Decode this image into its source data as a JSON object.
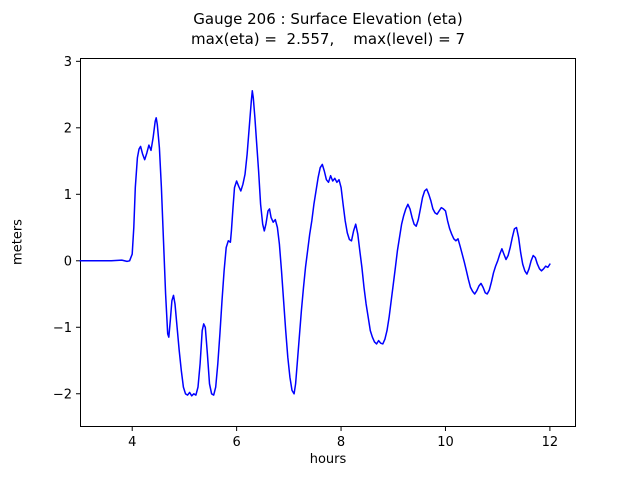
{
  "chart_data": {
    "type": "line",
    "title": "Gauge 206 : Surface Elevation (eta)",
    "subtitle": "max(eta) =  2.557,    max(level) = 7",
    "xlabel": "hours",
    "ylabel": "meters",
    "xlim": [
      3.0,
      12.5
    ],
    "ylim": [
      -2.5,
      3.05
    ],
    "xticks": [
      4,
      6,
      8,
      10,
      12
    ],
    "xtick_labels": [
      "4",
      "6",
      "8",
      "10",
      "12"
    ],
    "yticks": [
      -2,
      -1,
      0,
      1,
      2,
      3
    ],
    "ytick_labels": [
      "−2",
      "−1",
      "0",
      "1",
      "2",
      "3"
    ],
    "line_color": "#0000ff",
    "grid": false,
    "legend": null,
    "series": [
      {
        "name": "eta",
        "points": [
          [
            3.0,
            0.0
          ],
          [
            3.2,
            0.0
          ],
          [
            3.4,
            0.0
          ],
          [
            3.6,
            0.0
          ],
          [
            3.8,
            0.01
          ],
          [
            3.9,
            -0.01
          ],
          [
            3.95,
            0.0
          ],
          [
            4.0,
            0.1
          ],
          [
            4.03,
            0.5
          ],
          [
            4.06,
            1.1
          ],
          [
            4.1,
            1.55
          ],
          [
            4.13,
            1.68
          ],
          [
            4.16,
            1.72
          ],
          [
            4.2,
            1.6
          ],
          [
            4.24,
            1.52
          ],
          [
            4.28,
            1.62
          ],
          [
            4.32,
            1.74
          ],
          [
            4.36,
            1.66
          ],
          [
            4.4,
            1.85
          ],
          [
            4.44,
            2.1
          ],
          [
            4.46,
            2.15
          ],
          [
            4.48,
            2.05
          ],
          [
            4.52,
            1.7
          ],
          [
            4.56,
            1.1
          ],
          [
            4.6,
            0.3
          ],
          [
            4.64,
            -0.5
          ],
          [
            4.68,
            -1.1
          ],
          [
            4.7,
            -1.15
          ],
          [
            4.73,
            -0.9
          ],
          [
            4.76,
            -0.6
          ],
          [
            4.79,
            -0.52
          ],
          [
            4.82,
            -0.65
          ],
          [
            4.86,
            -1.0
          ],
          [
            4.9,
            -1.35
          ],
          [
            4.94,
            -1.65
          ],
          [
            4.98,
            -1.9
          ],
          [
            5.02,
            -2.0
          ],
          [
            5.06,
            -2.02
          ],
          [
            5.1,
            -1.98
          ],
          [
            5.14,
            -2.03
          ],
          [
            5.18,
            -2.0
          ],
          [
            5.22,
            -2.02
          ],
          [
            5.26,
            -1.9
          ],
          [
            5.3,
            -1.55
          ],
          [
            5.34,
            -1.05
          ],
          [
            5.37,
            -0.95
          ],
          [
            5.4,
            -1.0
          ],
          [
            5.44,
            -1.4
          ],
          [
            5.48,
            -1.85
          ],
          [
            5.52,
            -2.0
          ],
          [
            5.56,
            -2.02
          ],
          [
            5.6,
            -1.9
          ],
          [
            5.64,
            -1.55
          ],
          [
            5.68,
            -1.1
          ],
          [
            5.72,
            -0.6
          ],
          [
            5.76,
            -0.15
          ],
          [
            5.8,
            0.2
          ],
          [
            5.84,
            0.3
          ],
          [
            5.88,
            0.28
          ],
          [
            5.9,
            0.45
          ],
          [
            5.93,
            0.8
          ],
          [
            5.96,
            1.1
          ],
          [
            6.0,
            1.2
          ],
          [
            6.04,
            1.12
          ],
          [
            6.08,
            1.05
          ],
          [
            6.12,
            1.15
          ],
          [
            6.16,
            1.3
          ],
          [
            6.2,
            1.6
          ],
          [
            6.24,
            2.0
          ],
          [
            6.28,
            2.4
          ],
          [
            6.3,
            2.557
          ],
          [
            6.32,
            2.45
          ],
          [
            6.35,
            2.15
          ],
          [
            6.38,
            1.8
          ],
          [
            6.42,
            1.35
          ],
          [
            6.46,
            0.85
          ],
          [
            6.5,
            0.55
          ],
          [
            6.53,
            0.45
          ],
          [
            6.56,
            0.55
          ],
          [
            6.6,
            0.75
          ],
          [
            6.63,
            0.78
          ],
          [
            6.66,
            0.65
          ],
          [
            6.7,
            0.58
          ],
          [
            6.74,
            0.62
          ],
          [
            6.78,
            0.5
          ],
          [
            6.82,
            0.25
          ],
          [
            6.86,
            -0.15
          ],
          [
            6.9,
            -0.6
          ],
          [
            6.94,
            -1.05
          ],
          [
            6.98,
            -1.45
          ],
          [
            7.02,
            -1.75
          ],
          [
            7.06,
            -1.95
          ],
          [
            7.1,
            -2.0
          ],
          [
            7.13,
            -1.85
          ],
          [
            7.16,
            -1.55
          ],
          [
            7.2,
            -1.15
          ],
          [
            7.24,
            -0.75
          ],
          [
            7.28,
            -0.4
          ],
          [
            7.32,
            -0.1
          ],
          [
            7.36,
            0.15
          ],
          [
            7.4,
            0.4
          ],
          [
            7.44,
            0.6
          ],
          [
            7.48,
            0.85
          ],
          [
            7.52,
            1.05
          ],
          [
            7.56,
            1.25
          ],
          [
            7.6,
            1.4
          ],
          [
            7.64,
            1.45
          ],
          [
            7.68,
            1.35
          ],
          [
            7.72,
            1.22
          ],
          [
            7.76,
            1.18
          ],
          [
            7.8,
            1.28
          ],
          [
            7.84,
            1.2
          ],
          [
            7.88,
            1.24
          ],
          [
            7.92,
            1.18
          ],
          [
            7.96,
            1.22
          ],
          [
            8.0,
            1.1
          ],
          [
            8.04,
            0.85
          ],
          [
            8.08,
            0.6
          ],
          [
            8.12,
            0.42
          ],
          [
            8.16,
            0.32
          ],
          [
            8.2,
            0.3
          ],
          [
            8.24,
            0.45
          ],
          [
            8.28,
            0.55
          ],
          [
            8.32,
            0.4
          ],
          [
            8.36,
            0.15
          ],
          [
            8.4,
            -0.1
          ],
          [
            8.44,
            -0.4
          ],
          [
            8.48,
            -0.65
          ],
          [
            8.52,
            -0.85
          ],
          [
            8.56,
            -1.05
          ],
          [
            8.6,
            -1.15
          ],
          [
            8.64,
            -1.22
          ],
          [
            8.68,
            -1.25
          ],
          [
            8.72,
            -1.2
          ],
          [
            8.76,
            -1.24
          ],
          [
            8.8,
            -1.25
          ],
          [
            8.84,
            -1.18
          ],
          [
            8.88,
            -1.05
          ],
          [
            8.92,
            -0.85
          ],
          [
            8.96,
            -0.6
          ],
          [
            9.0,
            -0.35
          ],
          [
            9.04,
            -0.1
          ],
          [
            9.08,
            0.15
          ],
          [
            9.12,
            0.35
          ],
          [
            9.16,
            0.55
          ],
          [
            9.2,
            0.68
          ],
          [
            9.24,
            0.78
          ],
          [
            9.28,
            0.85
          ],
          [
            9.32,
            0.78
          ],
          [
            9.36,
            0.65
          ],
          [
            9.4,
            0.55
          ],
          [
            9.44,
            0.52
          ],
          [
            9.48,
            0.62
          ],
          [
            9.52,
            0.78
          ],
          [
            9.56,
            0.95
          ],
          [
            9.6,
            1.05
          ],
          [
            9.64,
            1.08
          ],
          [
            9.68,
            1.0
          ],
          [
            9.72,
            0.9
          ],
          [
            9.76,
            0.78
          ],
          [
            9.8,
            0.72
          ],
          [
            9.84,
            0.7
          ],
          [
            9.88,
            0.75
          ],
          [
            9.92,
            0.8
          ],
          [
            9.96,
            0.78
          ],
          [
            10.0,
            0.75
          ],
          [
            10.04,
            0.6
          ],
          [
            10.08,
            0.48
          ],
          [
            10.12,
            0.4
          ],
          [
            10.16,
            0.33
          ],
          [
            10.2,
            0.3
          ],
          [
            10.24,
            0.33
          ],
          [
            10.28,
            0.22
          ],
          [
            10.32,
            0.1
          ],
          [
            10.36,
            -0.02
          ],
          [
            10.4,
            -0.15
          ],
          [
            10.44,
            -0.28
          ],
          [
            10.48,
            -0.4
          ],
          [
            10.52,
            -0.46
          ],
          [
            10.56,
            -0.5
          ],
          [
            10.6,
            -0.45
          ],
          [
            10.64,
            -0.38
          ],
          [
            10.68,
            -0.34
          ],
          [
            10.72,
            -0.4
          ],
          [
            10.76,
            -0.48
          ],
          [
            10.8,
            -0.5
          ],
          [
            10.84,
            -0.44
          ],
          [
            10.88,
            -0.32
          ],
          [
            10.92,
            -0.18
          ],
          [
            10.96,
            -0.08
          ],
          [
            11.0,
            0.0
          ],
          [
            11.04,
            0.1
          ],
          [
            11.08,
            0.18
          ],
          [
            11.12,
            0.1
          ],
          [
            11.16,
            0.02
          ],
          [
            11.2,
            0.08
          ],
          [
            11.24,
            0.2
          ],
          [
            11.28,
            0.35
          ],
          [
            11.32,
            0.48
          ],
          [
            11.36,
            0.5
          ],
          [
            11.4,
            0.35
          ],
          [
            11.44,
            0.12
          ],
          [
            11.48,
            -0.05
          ],
          [
            11.52,
            -0.15
          ],
          [
            11.56,
            -0.2
          ],
          [
            11.6,
            -0.12
          ],
          [
            11.64,
            0.0
          ],
          [
            11.68,
            0.08
          ],
          [
            11.72,
            0.05
          ],
          [
            11.76,
            -0.05
          ],
          [
            11.8,
            -0.12
          ],
          [
            11.84,
            -0.15
          ],
          [
            11.88,
            -0.12
          ],
          [
            11.92,
            -0.08
          ],
          [
            11.96,
            -0.1
          ],
          [
            12.0,
            -0.05
          ]
        ]
      }
    ]
  }
}
